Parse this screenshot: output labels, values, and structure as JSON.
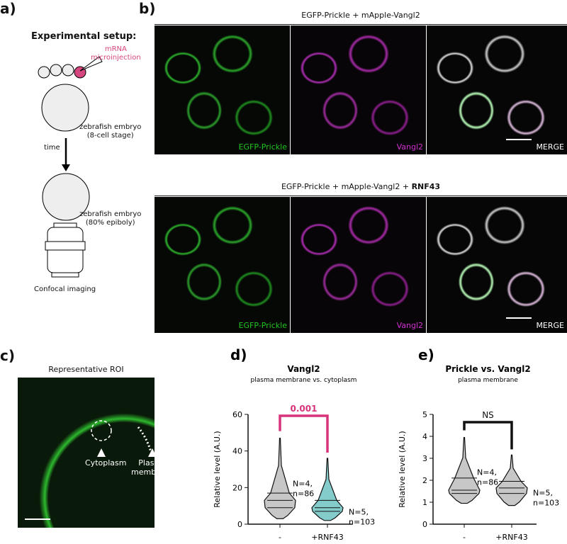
{
  "panel_a": {
    "label": "a)",
    "title": "Experimental setup:",
    "injection": [
      "mRNA",
      "microinjection"
    ],
    "stage1": [
      "zebrafish embryo",
      "(8-cell stage)"
    ],
    "time": "time",
    "stage2": [
      "zebrafish embryo",
      "(80% epiboly)"
    ],
    "imaging": "Confocal imaging",
    "accent": "#d6467e"
  },
  "panel_b": {
    "label": "b)",
    "rows": [
      {
        "title": "EGFP-Prickle + mApple-Vangl2",
        "title_bold": "",
        "channels": [
          "EGFP-Prickle",
          "Vangl2",
          "MERGE"
        ]
      },
      {
        "title": "EGFP-Prickle + mApple-Vangl2 + ",
        "title_bold": "RNF43",
        "channels": [
          "EGFP-Prickle",
          "Vangl2",
          "MERGE"
        ]
      }
    ],
    "colors": {
      "green": "#22c422",
      "magenta": "#d030d0"
    }
  },
  "panel_c": {
    "label": "c)",
    "title": "Representative ROI",
    "markers": [
      "Cytoplasm",
      [
        "Plasma",
        "membrane"
      ]
    ]
  },
  "chart_data": [
    {
      "label": "d)",
      "type": "violin",
      "title": "Vangl2",
      "subtitle": "plasma membrane vs. cytoplasm",
      "ylabel": "Relative level (A.U.)",
      "ylim": [
        0,
        60
      ],
      "yticks": [
        0,
        20,
        40,
        60
      ],
      "categories": [
        "-",
        "+RNF43"
      ],
      "series": [
        {
          "min": 3,
          "q1": 9,
          "median": 13,
          "q3": 17,
          "max": 47,
          "color": "#999999",
          "annotation": [
            "N=4,",
            "n=86"
          ]
        },
        {
          "min": 2,
          "q1": 7,
          "median": 9,
          "q3": 13,
          "max": 36,
          "color": "#1fa3a3",
          "annotation": [
            "N=5,",
            "n=103"
          ]
        }
      ],
      "significance": {
        "text": "0.001",
        "color": "#d6337a"
      }
    },
    {
      "label": "e)",
      "type": "violin",
      "title": "Prickle vs. Vangl2",
      "subtitle": "plasma membrane",
      "ylabel": "Relative level (A.U.)",
      "ylim": [
        0,
        5
      ],
      "yticks": [
        0,
        1,
        2,
        3,
        4,
        5
      ],
      "categories": [
        "-",
        "+RNF43"
      ],
      "series": [
        {
          "min": 0.95,
          "q1": 1.4,
          "median": 1.55,
          "q3": 2.1,
          "max": 3.95,
          "color": "#999999",
          "annotation": [
            "N=4,",
            "n=86"
          ]
        },
        {
          "min": 0.85,
          "q1": 1.4,
          "median": 1.65,
          "q3": 1.95,
          "max": 3.15,
          "color": "#999999",
          "annotation": [
            "N=5,",
            "n=103"
          ]
        }
      ],
      "significance": {
        "text": "NS",
        "color": "#111111"
      }
    }
  ]
}
